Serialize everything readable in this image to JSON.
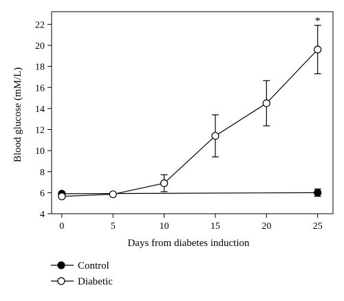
{
  "chart_data": {
    "type": "line",
    "xlabel": "Days from diabetes induction",
    "ylabel": "Blood glucose (mM/L)",
    "xlim": [
      -1,
      26.5
    ],
    "ylim": [
      4,
      23.2
    ],
    "xticks": [
      0,
      5,
      10,
      15,
      20,
      25
    ],
    "yticks": [
      4,
      6,
      8,
      10,
      12,
      14,
      16,
      18,
      20,
      22
    ],
    "grid": false,
    "legend_placement": "bottom-left",
    "x": [
      0,
      5,
      10,
      15,
      20,
      25
    ],
    "series": [
      {
        "name": "Control",
        "marker": "filled-circle",
        "color": "#000000",
        "x": [
          0,
          25
        ],
        "values": [
          5.9,
          6.0
        ],
        "error": [
          0.15,
          0.35
        ]
      },
      {
        "name": "Diabetic",
        "marker": "open-circle",
        "color": "#000000",
        "x": [
          0,
          5,
          10,
          15,
          20,
          25
        ],
        "values": [
          5.65,
          5.85,
          6.9,
          11.4,
          14.5,
          19.6
        ],
        "error": [
          0.15,
          0.1,
          0.8,
          2.0,
          2.15,
          2.3
        ]
      }
    ],
    "annotations": [
      {
        "text": "*",
        "x": 25,
        "y": 22.5
      }
    ]
  }
}
